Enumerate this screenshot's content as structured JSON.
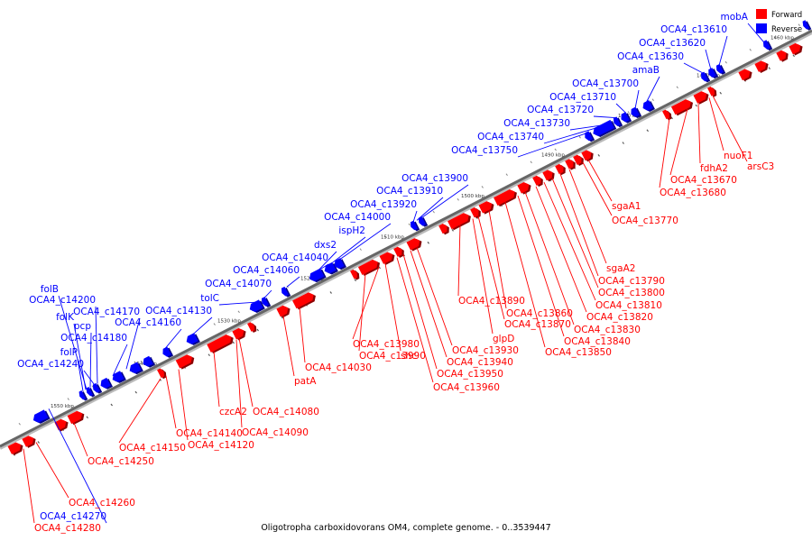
{
  "caption": "Oligotropha carboxidovorans OM4, complete genome. - 0..3539447",
  "legend": [
    {
      "label": "Forward",
      "color": "#ff0000"
    },
    {
      "label": "Reverse",
      "color": "#0000ff"
    }
  ],
  "colors": {
    "forward": "#ff0000",
    "forward_edge": "#8b0000",
    "reverse": "#0000ff",
    "reverse_edge": "#00008b",
    "backbone": "#666666"
  },
  "ticks": [
    "1550 kbp",
    "1540 kbp",
    "1530 kbp",
    "1520 kbp",
    "1510 kbp",
    "1500 kbp",
    "1490 kbp",
    "1480 kbp",
    "1470 kbp",
    "1460 kbp"
  ],
  "reverse_labels": [
    "mobA",
    "OCA4_c13610",
    "OCA4_c13620",
    "OCA4_c13630",
    "amaB",
    "OCA4_c13700",
    "OCA4_c13710",
    "OCA4_c13720",
    "OCA4_c13730",
    "OCA4_c13740",
    "OCA4_c13750",
    "OCA4_c13900",
    "OCA4_c13910",
    "OCA4_c13920",
    "OCA4_c14000",
    "ispH2",
    "dxs2",
    "OCA4_c14040",
    "OCA4_c14060",
    "OCA4_c14070",
    "tolC",
    "OCA4_c14130",
    "OCA4_c14160",
    "folB",
    "OCA4_c14200",
    "OCA4_c14170",
    "folK",
    "pcp",
    "OCA4_c14180",
    "folP",
    "OCA4_c14240",
    "OCA4_c14270"
  ],
  "forward_labels": [
    "nuoF1",
    "arsC3",
    "fdhA2",
    "OCA4_c13670",
    "OCA4_c13680",
    "sgaA1",
    "OCA4_c13770",
    "sgaA2",
    "OCA4_c13790",
    "OCA4_c13800",
    "OCA4_c13810",
    "OCA4_c13820",
    "OCA4_c13830",
    "OCA4_c13840",
    "OCA4_c13850",
    "OCA4_c13860",
    "OCA4_c13870",
    "glpD",
    "OCA4_c13890",
    "OCA4_c13930",
    "OCA4_c13940",
    "OCA4_c13950",
    "OCA4_c13960",
    "shc",
    "OCA4_c13980",
    "OCA4_c13990",
    "OCA4_c14030",
    "patA",
    "OCA4_c14080",
    "OCA4_c14090",
    "czcA2",
    "OCA4_c14120",
    "OCA4_c14140",
    "OCA4_c14150",
    "OCA4_c14250",
    "OCA4_c14260",
    "OCA4_c14280"
  ]
}
